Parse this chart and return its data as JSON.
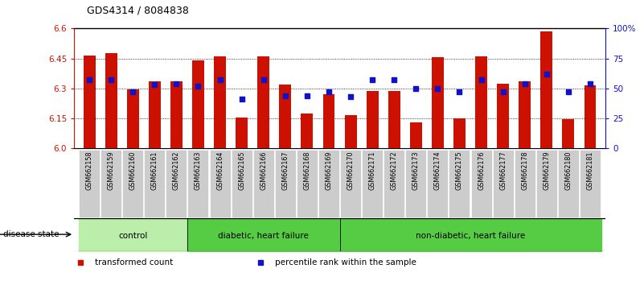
{
  "title": "GDS4314 / 8084838",
  "samples": [
    "GSM662158",
    "GSM662159",
    "GSM662160",
    "GSM662161",
    "GSM662162",
    "GSM662163",
    "GSM662164",
    "GSM662165",
    "GSM662166",
    "GSM662167",
    "GSM662168",
    "GSM662169",
    "GSM662170",
    "GSM662171",
    "GSM662172",
    "GSM662173",
    "GSM662174",
    "GSM662175",
    "GSM662176",
    "GSM662177",
    "GSM662178",
    "GSM662179",
    "GSM662180",
    "GSM662181"
  ],
  "transformed_count": [
    6.465,
    6.475,
    6.295,
    6.335,
    6.335,
    6.44,
    6.46,
    6.155,
    6.46,
    6.32,
    6.175,
    6.27,
    6.165,
    6.285,
    6.285,
    6.13,
    6.455,
    6.15,
    6.46,
    6.325,
    6.335,
    6.585,
    6.145,
    6.315
  ],
  "percentile_rank": [
    57,
    57,
    47,
    53,
    54,
    52,
    57,
    41,
    57,
    44,
    44,
    47,
    43,
    57,
    57,
    50,
    50,
    47,
    57,
    47,
    54,
    62,
    47,
    54
  ],
  "group_boundaries": [
    0,
    5,
    12,
    24
  ],
  "group_labels": [
    "control",
    "diabetic, heart failure",
    "non-diabetic, heart failure"
  ],
  "group_colors": [
    "#BBEEAA",
    "#55CC44",
    "#55CC44"
  ],
  "ylim_left": [
    6.0,
    6.6
  ],
  "ylim_right": [
    0,
    100
  ],
  "yticks_left": [
    6.0,
    6.15,
    6.3,
    6.45,
    6.6
  ],
  "yticks_right": [
    0,
    25,
    50,
    75,
    100
  ],
  "ytick_right_labels": [
    "0",
    "25",
    "50",
    "75",
    "100%"
  ],
  "bar_color": "#CC1100",
  "dot_color": "#1111CC",
  "bar_width": 0.55,
  "grid_color": "black",
  "grid_style": "dotted",
  "legend_labels": [
    "transformed count",
    "percentile rank within the sample"
  ],
  "legend_colors": [
    "#CC1100",
    "#1111CC"
  ],
  "disease_state_label": "disease state",
  "xtick_bg": "#CCCCCC"
}
